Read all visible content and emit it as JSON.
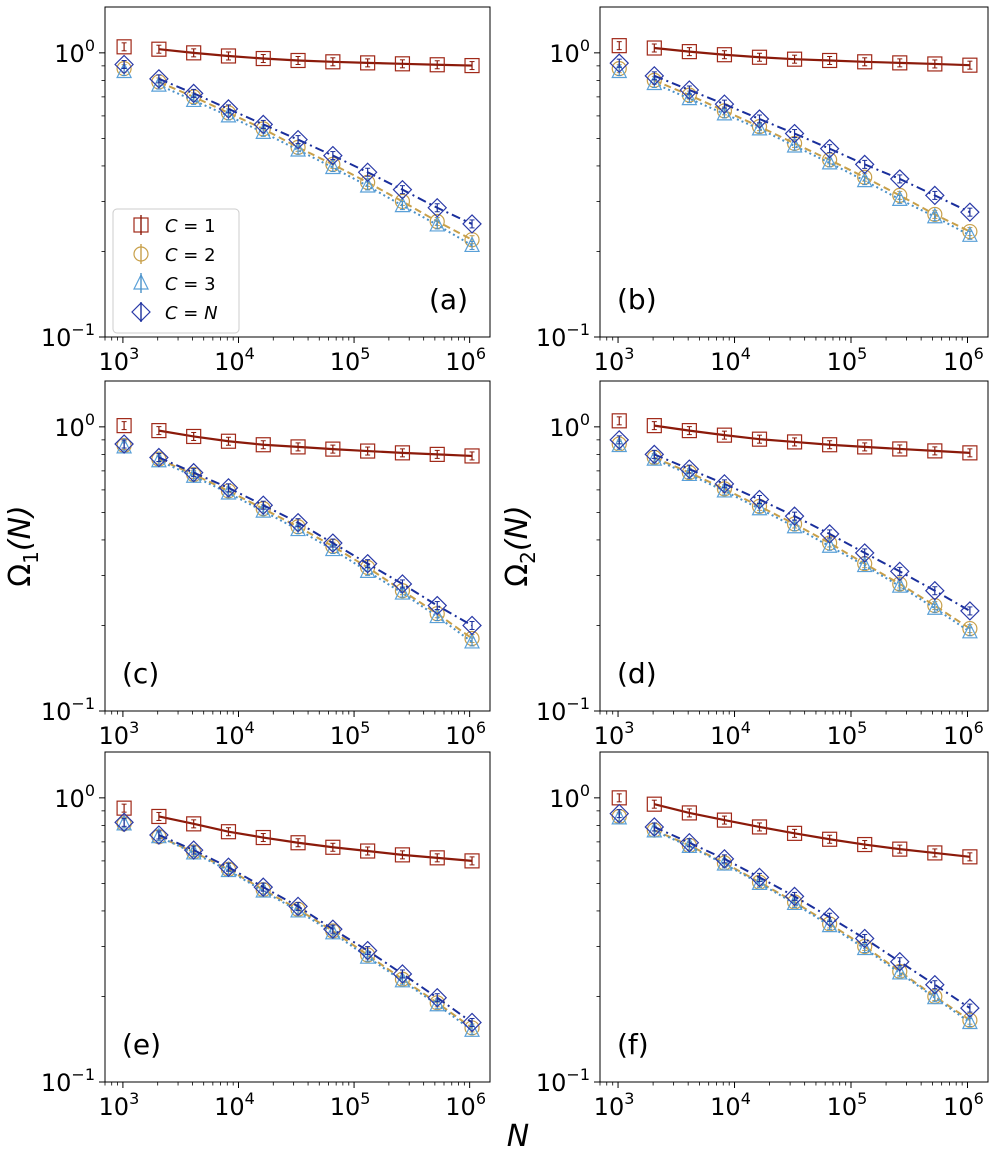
{
  "figure": {
    "xlabel_main": "N",
    "ylabel_left": "Ω",
    "ylabel_left_sub": "1",
    "ylabel_right": "Ω",
    "ylabel_right_sub": "2",
    "ylabel_arg": "(N)"
  },
  "legend": {
    "entries": [
      {
        "key": "c1",
        "label_prefix": "C",
        "label_suffix": " = 1"
      },
      {
        "key": "c2",
        "label_prefix": "C",
        "label_suffix": " = 2"
      },
      {
        "key": "c3",
        "label_prefix": "C",
        "label_suffix": " = 3"
      },
      {
        "key": "cN",
        "label_prefix": "C",
        "label_suffix": " = ",
        "label_italic_tail": "N"
      }
    ]
  },
  "colors": {
    "c1": "#8b1a0a",
    "c2": "#c8a04a",
    "c3": "#4a90c8",
    "cN": "#1a2f9c",
    "marker_c1": "#a02818",
    "marker_c2": "#c8a04a",
    "marker_c3": "#5aa0d8",
    "marker_cN": "#2a3aa8"
  },
  "axes_common": {
    "xscale": "log",
    "yscale": "log",
    "xlim": [
      700,
      1500000
    ],
    "ylim": [
      0.1,
      1.45
    ],
    "xticks": [
      {
        "value": 1000,
        "base": "10",
        "exp": "3"
      },
      {
        "value": 10000,
        "base": "10",
        "exp": "4"
      },
      {
        "value": 100000,
        "base": "10",
        "exp": "5"
      },
      {
        "value": 1000000,
        "base": "10",
        "exp": "6"
      }
    ],
    "yticks": [
      {
        "value": 0.1,
        "base": "10",
        "exp": "−1"
      },
      {
        "value": 1,
        "base": "10",
        "exp": "0"
      }
    ]
  },
  "chart_data": [
    {
      "type": "line",
      "panel": "(a)",
      "ylabel": "",
      "legend": "center-left",
      "x": [
        1024,
        2048,
        4096,
        8192,
        16384,
        32768,
        65536,
        131072,
        262144,
        524288,
        1048576
      ],
      "series": [
        {
          "name": "C = 1",
          "key": "c1",
          "values": [
            1.05,
            1.03,
            1.0,
            0.975,
            0.955,
            0.94,
            0.93,
            0.922,
            0.915,
            0.908,
            0.902
          ]
        },
        {
          "name": "C = 2",
          "key": "c2",
          "values": [
            0.88,
            0.79,
            0.7,
            0.615,
            0.54,
            0.465,
            0.405,
            0.35,
            0.3,
            0.255,
            0.22
          ]
        },
        {
          "name": "C = 3",
          "key": "c3",
          "values": [
            0.86,
            0.77,
            0.68,
            0.6,
            0.525,
            0.455,
            0.395,
            0.34,
            0.29,
            0.248,
            0.21
          ]
        },
        {
          "name": "C = N",
          "key": "cN",
          "values": [
            0.91,
            0.81,
            0.72,
            0.635,
            0.56,
            0.495,
            0.435,
            0.38,
            0.33,
            0.285,
            0.25
          ]
        }
      ]
    },
    {
      "type": "line",
      "panel": "(b)",
      "ylabel": "",
      "x": [
        1024,
        2048,
        4096,
        8192,
        16384,
        32768,
        65536,
        131072,
        262144,
        524288,
        1048576
      ],
      "series": [
        {
          "name": "C = 1",
          "key": "c1",
          "values": [
            1.06,
            1.04,
            1.01,
            0.985,
            0.965,
            0.95,
            0.94,
            0.93,
            0.922,
            0.914,
            0.905
          ]
        },
        {
          "name": "C = 2",
          "key": "c2",
          "values": [
            0.88,
            0.8,
            0.71,
            0.625,
            0.55,
            0.48,
            0.42,
            0.365,
            0.315,
            0.27,
            0.235
          ]
        },
        {
          "name": "C = 3",
          "key": "c3",
          "values": [
            0.86,
            0.78,
            0.69,
            0.61,
            0.54,
            0.47,
            0.41,
            0.355,
            0.305,
            0.265,
            0.228
          ]
        },
        {
          "name": "C = N",
          "key": "cN",
          "values": [
            0.92,
            0.83,
            0.74,
            0.66,
            0.585,
            0.52,
            0.46,
            0.405,
            0.36,
            0.315,
            0.275
          ]
        }
      ]
    },
    {
      "type": "line",
      "panel": "(c)",
      "ylabel": "Ω₁(N)",
      "x": [
        1024,
        2048,
        4096,
        8192,
        16384,
        32768,
        65536,
        131072,
        262144,
        524288,
        1048576
      ],
      "series": [
        {
          "name": "C = 1",
          "key": "c1",
          "values": [
            1.01,
            0.97,
            0.925,
            0.89,
            0.865,
            0.85,
            0.835,
            0.822,
            0.81,
            0.8,
            0.79
          ]
        },
        {
          "name": "C = 2",
          "key": "c2",
          "values": [
            0.86,
            0.77,
            0.68,
            0.595,
            0.515,
            0.445,
            0.38,
            0.32,
            0.265,
            0.22,
            0.18
          ]
        },
        {
          "name": "C = 3",
          "key": "c3",
          "values": [
            0.85,
            0.76,
            0.67,
            0.585,
            0.505,
            0.435,
            0.37,
            0.31,
            0.26,
            0.215,
            0.175
          ]
        },
        {
          "name": "C = N",
          "key": "cN",
          "values": [
            0.87,
            0.78,
            0.69,
            0.61,
            0.53,
            0.46,
            0.39,
            0.33,
            0.28,
            0.235,
            0.2
          ]
        }
      ]
    },
    {
      "type": "line",
      "panel": "(d)",
      "ylabel": "Ω₂(N)",
      "x": [
        1024,
        2048,
        4096,
        8192,
        16384,
        32768,
        65536,
        131072,
        262144,
        524288,
        1048576
      ],
      "series": [
        {
          "name": "C = 1",
          "key": "c1",
          "values": [
            1.05,
            1.01,
            0.97,
            0.935,
            0.905,
            0.885,
            0.865,
            0.85,
            0.836,
            0.823,
            0.81
          ]
        },
        {
          "name": "C = 2",
          "key": "c2",
          "values": [
            0.87,
            0.78,
            0.69,
            0.605,
            0.525,
            0.455,
            0.39,
            0.33,
            0.28,
            0.235,
            0.195
          ]
        },
        {
          "name": "C = 3",
          "key": "c3",
          "values": [
            0.86,
            0.77,
            0.68,
            0.595,
            0.515,
            0.445,
            0.38,
            0.325,
            0.275,
            0.23,
            0.19
          ]
        },
        {
          "name": "C = N",
          "key": "cN",
          "values": [
            0.9,
            0.8,
            0.71,
            0.63,
            0.555,
            0.485,
            0.42,
            0.36,
            0.31,
            0.265,
            0.225
          ]
        }
      ]
    },
    {
      "type": "line",
      "panel": "(e)",
      "ylabel": "",
      "x": [
        1024,
        2048,
        4096,
        8192,
        16384,
        32768,
        65536,
        131072,
        262144,
        524288,
        1048576
      ],
      "series": [
        {
          "name": "C = 1",
          "key": "c1",
          "values": [
            0.92,
            0.86,
            0.81,
            0.76,
            0.725,
            0.695,
            0.67,
            0.65,
            0.63,
            0.615,
            0.6
          ]
        },
        {
          "name": "C = 2",
          "key": "c2",
          "values": [
            0.81,
            0.73,
            0.645,
            0.56,
            0.475,
            0.405,
            0.34,
            0.28,
            0.23,
            0.19,
            0.155
          ]
        },
        {
          "name": "C = 3",
          "key": "c3",
          "values": [
            0.81,
            0.73,
            0.64,
            0.555,
            0.47,
            0.4,
            0.335,
            0.275,
            0.227,
            0.187,
            0.152
          ]
        },
        {
          "name": "C = N",
          "key": "cN",
          "values": [
            0.82,
            0.74,
            0.655,
            0.57,
            0.485,
            0.415,
            0.345,
            0.29,
            0.24,
            0.198,
            0.162
          ]
        }
      ]
    },
    {
      "type": "line",
      "panel": "(f)",
      "ylabel": "",
      "x": [
        1024,
        2048,
        4096,
        8192,
        16384,
        32768,
        65536,
        131072,
        262144,
        524288,
        1048576
      ],
      "series": [
        {
          "name": "C = 1",
          "key": "c1",
          "values": [
            1.0,
            0.95,
            0.885,
            0.835,
            0.79,
            0.75,
            0.715,
            0.685,
            0.66,
            0.64,
            0.62
          ]
        },
        {
          "name": "C = 2",
          "key": "c2",
          "values": [
            0.86,
            0.77,
            0.68,
            0.59,
            0.505,
            0.43,
            0.36,
            0.3,
            0.245,
            0.2,
            0.165
          ]
        },
        {
          "name": "C = 3",
          "key": "c3",
          "values": [
            0.85,
            0.765,
            0.675,
            0.585,
            0.5,
            0.425,
            0.355,
            0.295,
            0.242,
            0.198,
            0.162
          ]
        },
        {
          "name": "C = N",
          "key": "cN",
          "values": [
            0.88,
            0.79,
            0.695,
            0.61,
            0.525,
            0.45,
            0.38,
            0.32,
            0.265,
            0.22,
            0.182
          ]
        }
      ]
    }
  ]
}
